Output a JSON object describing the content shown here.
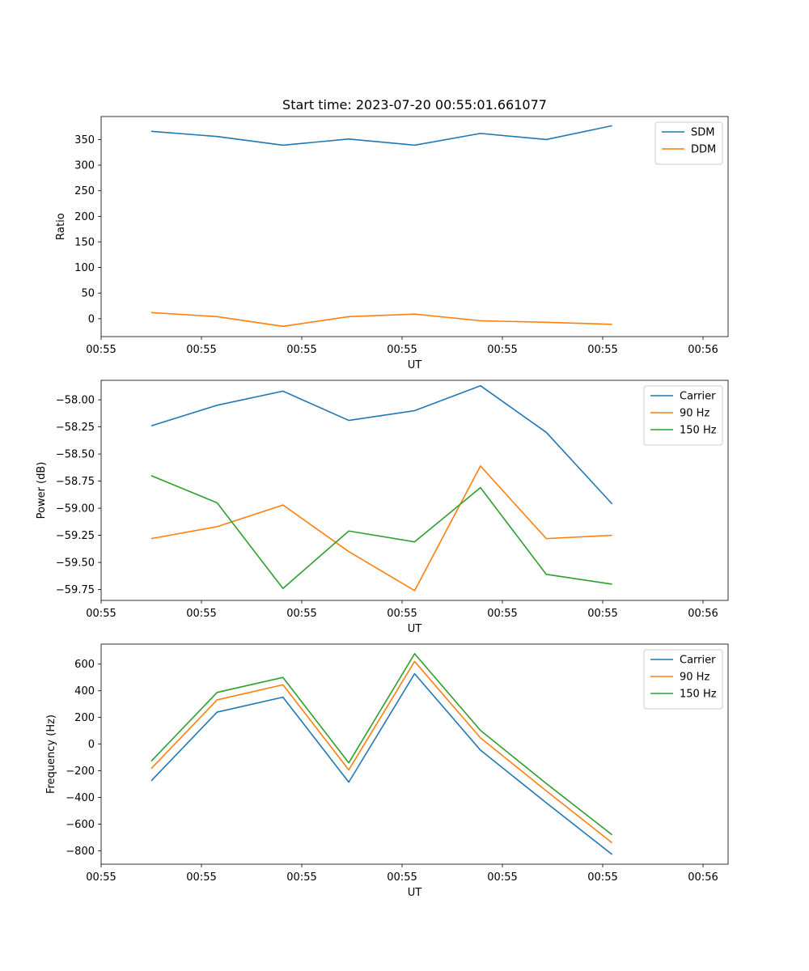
{
  "figure": {
    "title": "Start time: 2023-07-20 00:55:01.661077"
  },
  "colors": {
    "blue": "#1f77b4",
    "orange": "#ff7f0e",
    "green": "#2ca02c"
  },
  "chart_data": [
    {
      "type": "line",
      "title": "Start time: 2023-07-20 00:55:01.661077",
      "xlabel": "UT",
      "ylabel": "Ratio",
      "legend": "top-right",
      "xlim": [
        0,
        10
      ],
      "ylim": [
        -35,
        395
      ],
      "x_ticks": [
        {
          "value": 0,
          "label": "00:55"
        },
        {
          "value": 1.6,
          "label": "00:55"
        },
        {
          "value": 3.2,
          "label": "00:55"
        },
        {
          "value": 4.8,
          "label": "00:55"
        },
        {
          "value": 6.4,
          "label": "00:55"
        },
        {
          "value": 8.0,
          "label": "00:55"
        },
        {
          "value": 9.6,
          "label": "00:56"
        }
      ],
      "y_ticks": [
        {
          "value": 0,
          "label": "0"
        },
        {
          "value": 50,
          "label": "50"
        },
        {
          "value": 100,
          "label": "100"
        },
        {
          "value": 150,
          "label": "150"
        },
        {
          "value": 200,
          "label": "200"
        },
        {
          "value": 250,
          "label": "250"
        },
        {
          "value": 300,
          "label": "300"
        },
        {
          "value": 350,
          "label": "350"
        }
      ],
      "x": [
        0.8,
        1.85,
        2.9,
        3.95,
        5.0,
        6.05,
        7.1,
        8.15
      ],
      "series": [
        {
          "name": "SDM",
          "color": "#1f77b4",
          "values": [
            366,
            356,
            339,
            351,
            339,
            362,
            350,
            377
          ]
        },
        {
          "name": "DDM",
          "color": "#ff7f0e",
          "values": [
            12,
            4,
            -15,
            4,
            9,
            -4,
            -7,
            -11
          ]
        }
      ]
    },
    {
      "type": "line",
      "title": "",
      "xlabel": "UT",
      "ylabel": "Power (dB)",
      "legend": "top-right",
      "xlim": [
        0,
        10
      ],
      "ylim": [
        -59.85,
        -57.82
      ],
      "x_ticks": [
        {
          "value": 0,
          "label": "00:55"
        },
        {
          "value": 1.6,
          "label": "00:55"
        },
        {
          "value": 3.2,
          "label": "00:55"
        },
        {
          "value": 4.8,
          "label": "00:55"
        },
        {
          "value": 6.4,
          "label": "00:55"
        },
        {
          "value": 8.0,
          "label": "00:55"
        },
        {
          "value": 9.6,
          "label": "00:56"
        }
      ],
      "y_ticks": [
        {
          "value": -59.75,
          "label": "−59.75"
        },
        {
          "value": -59.5,
          "label": "−59.50"
        },
        {
          "value": -59.25,
          "label": "−59.25"
        },
        {
          "value": -59.0,
          "label": "−59.00"
        },
        {
          "value": -58.75,
          "label": "−58.75"
        },
        {
          "value": -58.5,
          "label": "−58.50"
        },
        {
          "value": -58.25,
          "label": "−58.25"
        },
        {
          "value": -58.0,
          "label": "−58.00"
        }
      ],
      "x": [
        0.8,
        1.85,
        2.9,
        3.95,
        5.0,
        6.05,
        7.1,
        8.15
      ],
      "series": [
        {
          "name": "Carrier",
          "color": "#1f77b4",
          "values": [
            -58.24,
            -58.05,
            -57.92,
            -58.19,
            -58.1,
            -57.87,
            -58.3,
            -58.96
          ]
        },
        {
          "name": "90 Hz",
          "color": "#ff7f0e",
          "values": [
            -59.28,
            -59.17,
            -58.97,
            -59.4,
            -59.76,
            -58.61,
            -59.28,
            -59.25
          ]
        },
        {
          "name": "150 Hz",
          "color": "#2ca02c",
          "values": [
            -58.7,
            -58.95,
            -59.74,
            -59.21,
            -59.31,
            -58.81,
            -59.61,
            -59.7
          ]
        }
      ]
    },
    {
      "type": "line",
      "title": "",
      "xlabel": "UT",
      "ylabel": "Frequency (Hz)",
      "legend": "top-right",
      "xlim": [
        0,
        10
      ],
      "ylim": [
        -900,
        750
      ],
      "x_ticks": [
        {
          "value": 0,
          "label": "00:55"
        },
        {
          "value": 1.6,
          "label": "00:55"
        },
        {
          "value": 3.2,
          "label": "00:55"
        },
        {
          "value": 4.8,
          "label": "00:55"
        },
        {
          "value": 6.4,
          "label": "00:55"
        },
        {
          "value": 8.0,
          "label": "00:55"
        },
        {
          "value": 9.6,
          "label": "00:56"
        }
      ],
      "y_ticks": [
        {
          "value": -800,
          "label": "−800"
        },
        {
          "value": -600,
          "label": "−600"
        },
        {
          "value": -400,
          "label": "−400"
        },
        {
          "value": -200,
          "label": "−200"
        },
        {
          "value": 0,
          "label": "0"
        },
        {
          "value": 200,
          "label": "200"
        },
        {
          "value": 400,
          "label": "400"
        },
        {
          "value": 600,
          "label": "600"
        }
      ],
      "x": [
        0.8,
        1.85,
        2.9,
        3.95,
        5.0,
        6.05,
        7.1,
        8.15
      ],
      "series": [
        {
          "name": "Carrier",
          "color": "#1f77b4",
          "values": [
            -275,
            240,
            352,
            -285,
            528,
            -45,
            -440,
            -827
          ]
        },
        {
          "name": "90 Hz",
          "color": "#ff7f0e",
          "values": [
            -183,
            332,
            445,
            -193,
            620,
            47,
            -350,
            -740
          ]
        },
        {
          "name": "150 Hz",
          "color": "#2ca02c",
          "values": [
            -128,
            388,
            500,
            -140,
            678,
            103,
            -295,
            -680
          ]
        }
      ]
    }
  ]
}
